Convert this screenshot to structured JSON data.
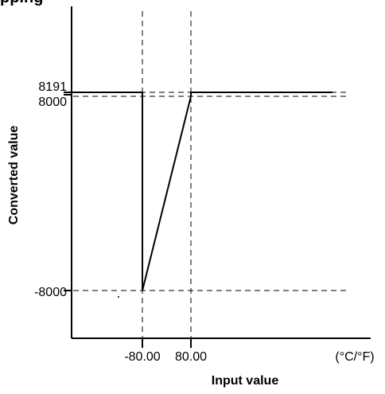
{
  "heading_partial": "pping",
  "chart_data": {
    "type": "line",
    "xlabel": "Input value",
    "ylabel": "Converted value",
    "x_unit_label": "(°C/°F)",
    "x_ticks": [
      {
        "value": -80,
        "label": "-80.00"
      },
      {
        "value": 80,
        "label": "80.00"
      }
    ],
    "y_ticks": [
      {
        "value": 8191,
        "label": "8191"
      },
      {
        "value": 8000,
        "label": "8000"
      },
      {
        "value": -8000,
        "label": "-8000"
      }
    ],
    "series": [
      {
        "points": [
          {
            "x": -80,
            "y": 8191
          },
          {
            "x": -80,
            "y": -8000
          },
          {
            "x": 80,
            "y": 8000
          },
          {
            "x": 80,
            "y": 8191
          },
          {
            "x": 560,
            "y": 8191
          }
        ]
      }
    ],
    "reference_lines": {
      "horizontal": [
        8191,
        8000,
        -8000
      ],
      "vertical": [
        -80,
        80
      ]
    },
    "grid": false
  }
}
